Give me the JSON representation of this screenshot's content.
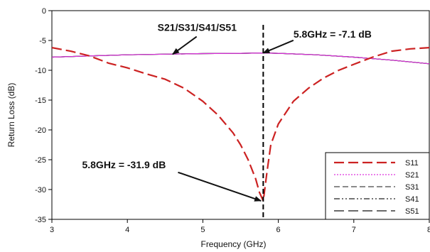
{
  "chart_data": {
    "type": "line",
    "title": "",
    "xlabel": "Frequency (GHz)",
    "ylabel": "Return Loss (dB)",
    "xlim": [
      3,
      8
    ],
    "ylim": [
      -35,
      0
    ],
    "xticks": [
      3,
      4,
      5,
      6,
      7,
      8
    ],
    "yticks": [
      0,
      -5,
      -10,
      -15,
      -20,
      -25,
      -30,
      -35
    ],
    "grid": false,
    "legend_position": "bottom-right",
    "series": [
      {
        "name": "S11",
        "color": "#cc2222",
        "dash": "long-dash",
        "x": [
          3.0,
          3.25,
          3.5,
          3.75,
          4.0,
          4.25,
          4.5,
          4.75,
          5.0,
          5.2,
          5.4,
          5.5,
          5.6,
          5.7,
          5.75,
          5.8,
          5.85,
          5.9,
          6.0,
          6.2,
          6.4,
          6.6,
          6.8,
          7.0,
          7.25,
          7.5,
          7.75,
          8.0
        ],
        "y": [
          -6.2,
          -6.8,
          -7.6,
          -8.8,
          -9.6,
          -10.6,
          -11.5,
          -13.0,
          -15.2,
          -17.5,
          -20.5,
          -22.5,
          -25.0,
          -28.2,
          -30.5,
          -31.9,
          -27.0,
          -22.5,
          -19.0,
          -15.2,
          -13.0,
          -11.3,
          -10.0,
          -9.0,
          -7.8,
          -6.8,
          -6.4,
          -6.2
        ]
      },
      {
        "name": "S21",
        "color": "#dd33dd",
        "dash": "dotted",
        "x": [
          3.0,
          3.5,
          4.0,
          4.5,
          5.0,
          5.5,
          5.8,
          6.0,
          6.5,
          7.0,
          7.5,
          8.0
        ],
        "y": [
          -7.8,
          -7.6,
          -7.4,
          -7.3,
          -7.2,
          -7.15,
          -7.1,
          -7.15,
          -7.4,
          -7.8,
          -8.3,
          -8.9
        ]
      },
      {
        "name": "S31",
        "color": "#444444",
        "dash": "dash",
        "x": [
          3.0,
          3.5,
          4.0,
          4.5,
          5.0,
          5.5,
          5.8,
          6.0,
          6.5,
          7.0,
          7.5,
          8.0
        ],
        "y": [
          -7.8,
          -7.6,
          -7.4,
          -7.3,
          -7.2,
          -7.15,
          -7.1,
          -7.15,
          -7.4,
          -7.8,
          -8.3,
          -8.9
        ]
      },
      {
        "name": "S41",
        "color": "#222222",
        "dash": "dash-dot-dot",
        "x": [
          3.0,
          3.5,
          4.0,
          4.5,
          5.0,
          5.5,
          5.8,
          6.0,
          6.5,
          7.0,
          7.5,
          8.0
        ],
        "y": [
          -7.8,
          -7.6,
          -7.4,
          -7.3,
          -7.2,
          -7.15,
          -7.1,
          -7.15,
          -7.4,
          -7.8,
          -8.3,
          -8.9
        ]
      },
      {
        "name": "S51",
        "color": "#111111",
        "dash": "long-dash",
        "x": [
          3.0,
          3.5,
          4.0,
          4.5,
          5.0,
          5.5,
          5.8,
          6.0,
          6.5,
          7.0,
          7.5,
          8.0
        ],
        "y": [
          -7.8,
          -7.6,
          -7.4,
          -7.3,
          -7.2,
          -7.15,
          -7.1,
          -7.15,
          -7.4,
          -7.8,
          -8.3,
          -8.9
        ]
      }
    ],
    "vertical_marker": {
      "x": 5.8,
      "dash": "dashed",
      "color": "#000000"
    },
    "annotations": [
      {
        "text": "S21/S31/S41/S51",
        "target": [
          4.6,
          -7.3
        ],
        "text_pos": [
          4.4,
          -3.4
        ]
      },
      {
        "text": "5.8GHz = -7.1 dB",
        "target": [
          5.8,
          -7.1
        ],
        "text_pos": [
          6.2,
          -4.5
        ]
      },
      {
        "text": "5.8GHz = -31.9 dB",
        "target": [
          5.77,
          -31.9
        ],
        "text_pos": [
          3.4,
          -26.4
        ]
      }
    ]
  }
}
